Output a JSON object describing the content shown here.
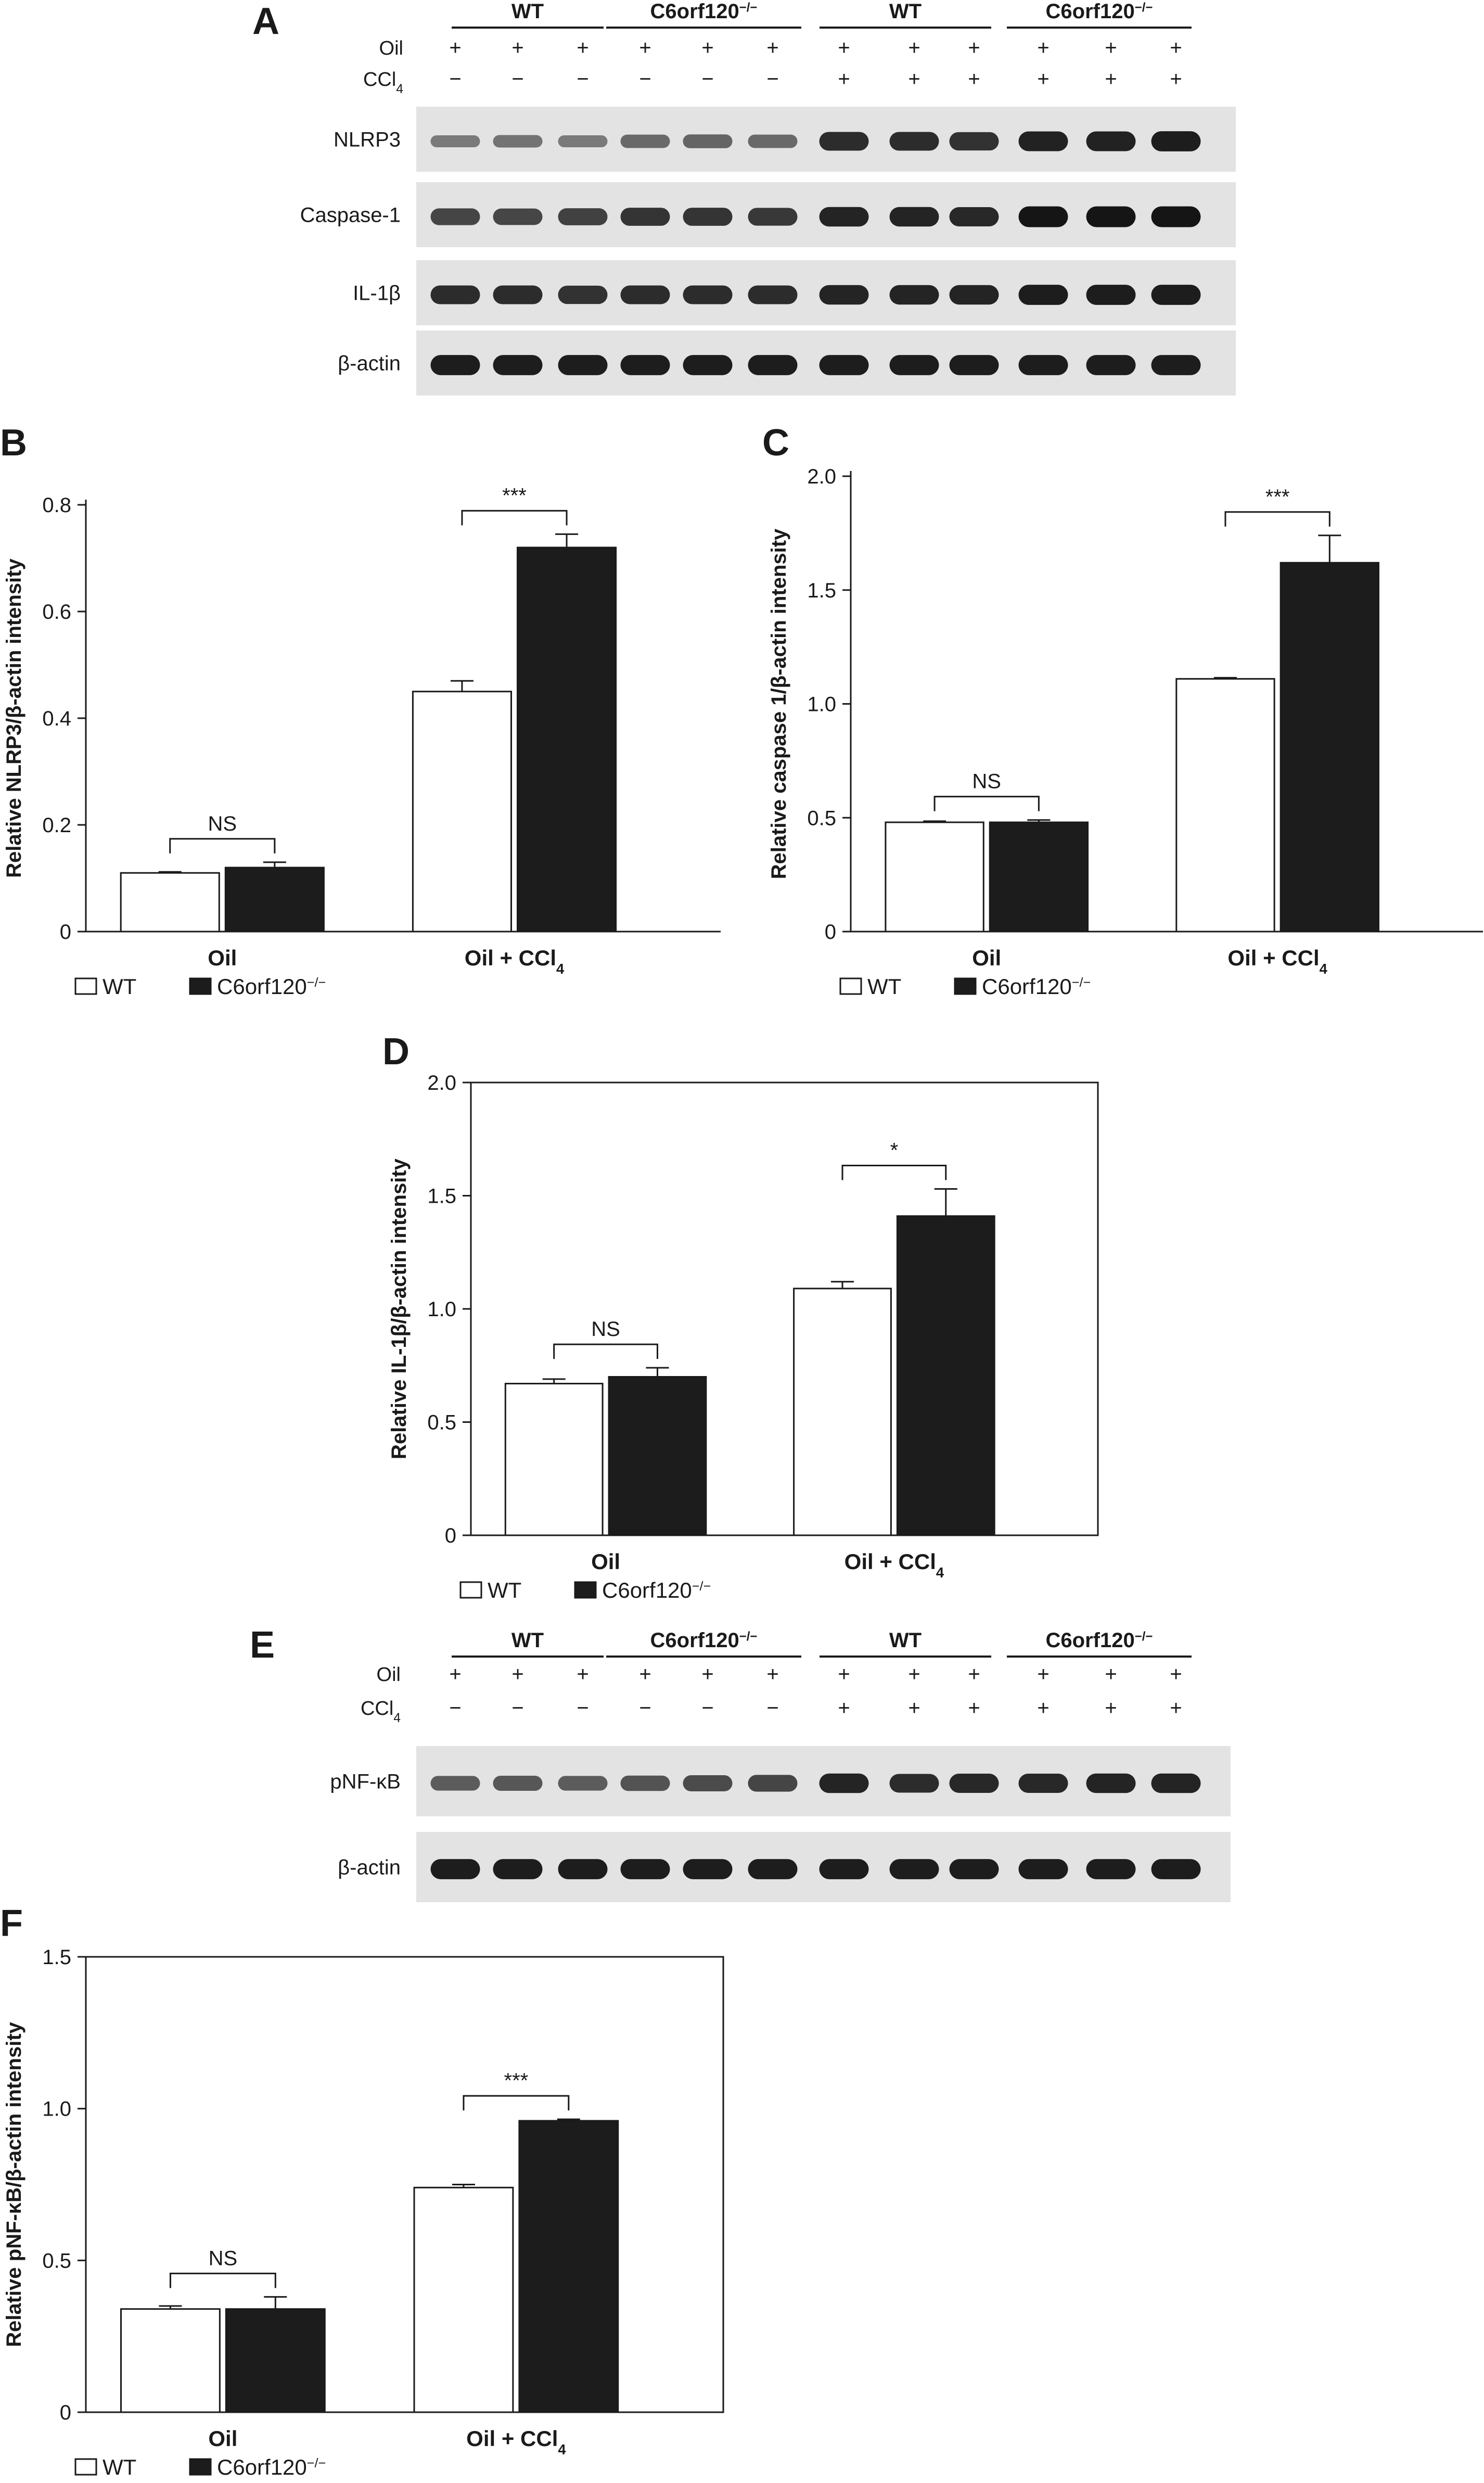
{
  "blots": [
    {
      "letter": "A",
      "groups": [
        "WT",
        "C6orf120−/−",
        "WT",
        "C6orf120−/−"
      ],
      "row_labels": [
        "Oil",
        "CCl4"
      ],
      "oil_signs": [
        "+",
        "+",
        "+",
        "+",
        "+",
        "+",
        "+",
        "+",
        "+",
        "+",
        "+",
        "+"
      ],
      "ccl4_signs": [
        "−",
        "−",
        "−",
        "−",
        "−",
        "−",
        "+",
        "+",
        "+",
        "+",
        "+",
        "+"
      ],
      "strips": [
        {
          "label": "NLRP3",
          "intensity": [
            0.35,
            0.38,
            0.35,
            0.45,
            0.48,
            0.45,
            0.85,
            0.85,
            0.82,
            0.92,
            0.92,
            0.95
          ]
        },
        {
          "label": "Caspase-1",
          "intensity": [
            0.7,
            0.68,
            0.72,
            0.8,
            0.8,
            0.78,
            0.9,
            0.9,
            0.88,
            1.0,
            1.0,
            1.0
          ]
        },
        {
          "label": "IL-1β",
          "intensity": [
            0.85,
            0.85,
            0.82,
            0.85,
            0.85,
            0.85,
            0.9,
            0.9,
            0.9,
            0.95,
            0.95,
            0.95
          ]
        },
        {
          "label": "β-actin",
          "intensity": [
            0.95,
            0.95,
            0.95,
            0.95,
            0.95,
            0.95,
            0.95,
            0.95,
            0.95,
            0.95,
            0.95,
            0.95
          ]
        }
      ]
    },
    {
      "letter": "E",
      "groups": [
        "WT",
        "C6orf120−/−",
        "WT",
        "C6orf120−/−"
      ],
      "row_labels": [
        "Oil",
        "CCl4"
      ],
      "oil_signs": [
        "+",
        "+",
        "+",
        "+",
        "+",
        "+",
        "+",
        "+",
        "+",
        "+",
        "+",
        "+"
      ],
      "ccl4_signs": [
        "−",
        "−",
        "−",
        "−",
        "−",
        "−",
        "+",
        "+",
        "+",
        "+",
        "+",
        "+"
      ],
      "strips": [
        {
          "label": "pNF-κB",
          "intensity": [
            0.55,
            0.58,
            0.55,
            0.6,
            0.65,
            0.7,
            0.9,
            0.85,
            0.88,
            0.88,
            0.9,
            0.9
          ]
        },
        {
          "label": "β-actin",
          "intensity": [
            0.95,
            0.95,
            0.95,
            0.95,
            0.95,
            0.95,
            0.95,
            0.95,
            0.95,
            0.95,
            0.95,
            0.95
          ]
        }
      ]
    }
  ],
  "legend": {
    "wt": "WT",
    "ko": "C6orf120−/−"
  },
  "colors": {
    "wt_fill": "#ffffff",
    "ko_fill": "#1c1c1c",
    "axis": "#1a1a1a",
    "blot_bg": "#e3e3e3",
    "band": "#151515"
  },
  "chart_data": [
    {
      "letter": "B",
      "type": "bar",
      "categories": [
        "Oil",
        "Oil + CCl4"
      ],
      "ylabel": "Relative NLRP3/β-actin intensity",
      "ylim": [
        0,
        0.8
      ],
      "yticks": [
        0,
        0.2,
        0.4,
        0.6,
        0.8
      ],
      "tick_labels": [
        "0",
        "0.2",
        "0.4",
        "0.6",
        "0.8"
      ],
      "series": [
        {
          "name": "WT",
          "values": [
            0.11,
            0.45
          ],
          "errors": [
            0.002,
            0.02
          ]
        },
        {
          "name": "C6orf120−/−",
          "values": [
            0.12,
            0.72
          ],
          "errors": [
            0.01,
            0.025
          ]
        }
      ],
      "significance": [
        "NS",
        "***"
      ],
      "boxed": false
    },
    {
      "letter": "C",
      "type": "bar",
      "categories": [
        "Oil",
        "Oil + CCl4"
      ],
      "ylabel": "Relative caspase 1/β-actin intensity",
      "ylim": [
        0,
        2.0
      ],
      "yticks": [
        0,
        0.5,
        1.0,
        1.5,
        2.0
      ],
      "tick_labels": [
        "0",
        "0.5",
        "1.0",
        "1.5",
        "2.0"
      ],
      "series": [
        {
          "name": "WT",
          "values": [
            0.48,
            1.11
          ],
          "errors": [
            0.005,
            0.005
          ]
        },
        {
          "name": "C6orf120−/−",
          "values": [
            0.48,
            1.62
          ],
          "errors": [
            0.01,
            0.12
          ]
        }
      ],
      "significance": [
        "NS",
        "***"
      ],
      "boxed": false
    },
    {
      "letter": "D",
      "type": "bar",
      "categories": [
        "Oil",
        "Oil + CCl4"
      ],
      "ylabel": "Relative IL-1β/β-actin intensity",
      "ylim": [
        0,
        2.0
      ],
      "yticks": [
        0,
        0.5,
        1.0,
        1.5,
        2.0
      ],
      "tick_labels": [
        "0",
        "0.5",
        "1.0",
        "1.5",
        "2.0"
      ],
      "series": [
        {
          "name": "WT",
          "values": [
            0.67,
            1.09
          ],
          "errors": [
            0.02,
            0.03
          ]
        },
        {
          "name": "C6orf120−/−",
          "values": [
            0.7,
            1.41
          ],
          "errors": [
            0.04,
            0.12
          ]
        }
      ],
      "significance": [
        "NS",
        "*"
      ],
      "boxed": true
    },
    {
      "letter": "F",
      "type": "bar",
      "categories": [
        "Oil",
        "Oil + CCl4"
      ],
      "ylabel": "Relative pNF-κB/β-actin intensity",
      "ylim": [
        0,
        1.5
      ],
      "yticks": [
        0,
        0.5,
        1.0,
        1.5
      ],
      "tick_labels": [
        "0",
        "0.5",
        "1.0",
        "1.5"
      ],
      "series": [
        {
          "name": "WT",
          "values": [
            0.34,
            0.74
          ],
          "errors": [
            0.01,
            0.01
          ]
        },
        {
          "name": "C6orf120−/−",
          "values": [
            0.34,
            0.96
          ],
          "errors": [
            0.04,
            0.005
          ]
        }
      ],
      "significance": [
        "NS",
        "***"
      ],
      "boxed": true
    }
  ]
}
